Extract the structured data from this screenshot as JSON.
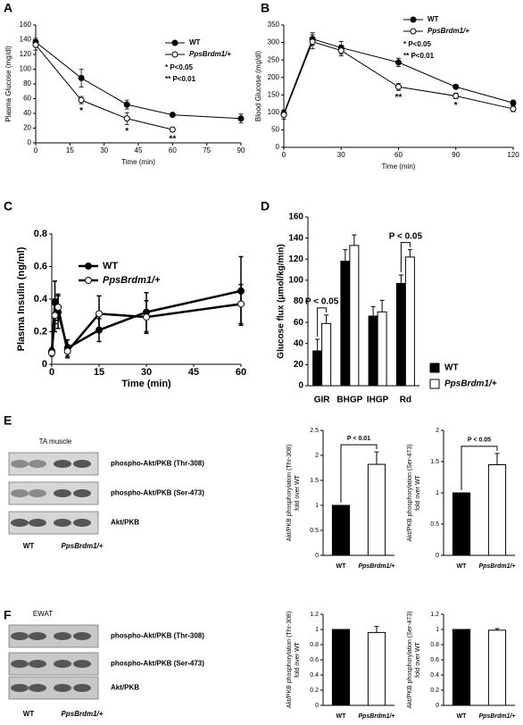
{
  "chart_data": [
    {
      "type": "line",
      "panel": "A",
      "ylabel": [
        "Plasma Glucose (mg/dl)"
      ],
      "xlabel": "Time (min)",
      "xlim": [
        0,
        90
      ],
      "xticks": [
        0,
        15,
        30,
        45,
        60,
        75,
        90
      ],
      "ylim": [
        0,
        160
      ],
      "yticks": [
        0,
        20,
        40,
        60,
        80,
        100,
        120,
        140,
        160
      ],
      "series": [
        {
          "name": "WT",
          "color": "#000000",
          "fill": "#000000",
          "x": [
            0,
            20,
            40,
            60,
            90
          ],
          "values": [
            137,
            88,
            52,
            38,
            33
          ],
          "errors": [
            5,
            12,
            6,
            2,
            6
          ]
        },
        {
          "name": "PpsBrdm1/+",
          "color": "#000000",
          "fill": "#ffffff",
          "x": [
            0,
            20,
            40,
            60
          ],
          "values": [
            133,
            58,
            33,
            18
          ],
          "errors": [
            7,
            5,
            8,
            3
          ]
        }
      ],
      "notes": [
        "* P<0.05",
        "** P<0.01"
      ],
      "annotations": [
        {
          "text": "*",
          "x": 20
        },
        {
          "text": "*",
          "x": 40
        },
        {
          "text": "**",
          "x": 60
        }
      ],
      "legend": "upper right"
    },
    {
      "type": "line",
      "panel": "B",
      "ylabel": [
        "Blood Glucose (mg/dl)"
      ],
      "xlabel": "Time (min)",
      "xlim": [
        0,
        120
      ],
      "xticks": [
        0,
        30,
        60,
        90,
        120
      ],
      "ylim": [
        0,
        350
      ],
      "yticks": [
        0,
        50,
        100,
        150,
        200,
        250,
        300,
        350
      ],
      "series": [
        {
          "name": "WT",
          "color": "#000000",
          "fill": "#000000",
          "x": [
            0,
            15,
            30,
            60,
            90,
            120
          ],
          "values": [
            97,
            310,
            285,
            243,
            173,
            127
          ],
          "errors": [
            10,
            18,
            18,
            12,
            6,
            8
          ]
        },
        {
          "name": "PpsBrdm1/+",
          "color": "#000000",
          "fill": "#ffffff",
          "x": [
            0,
            15,
            30,
            60,
            90,
            120
          ],
          "values": [
            93,
            302,
            277,
            173,
            147,
            110
          ],
          "errors": [
            12,
            20,
            15,
            10,
            8,
            8
          ]
        }
      ],
      "notes": [
        "* P<0.05",
        "** P<0.01"
      ],
      "annotations": [
        {
          "text": "**",
          "x": 60
        },
        {
          "text": "*",
          "x": 90
        }
      ],
      "legend": "upper right"
    },
    {
      "type": "line",
      "panel": "C",
      "ylabel": [
        "Plasma Insulin (ng/ml)"
      ],
      "xlabel": "Time (min)",
      "xlim": [
        0,
        60
      ],
      "xticks": [
        0,
        15,
        30,
        45,
        60
      ],
      "ylim": [
        0,
        0.8
      ],
      "yticks": [
        0,
        0.2,
        0.4,
        0.6,
        0.8
      ],
      "series": [
        {
          "name": "WT",
          "color": "#000000",
          "fill": "#000000",
          "x": [
            0,
            1,
            2,
            5,
            15,
            30,
            60
          ],
          "values": [
            0.08,
            0.38,
            0.32,
            0.1,
            0.21,
            0.32,
            0.45
          ],
          "errors": [
            0.02,
            0.13,
            0.1,
            0.05,
            0.07,
            0.12,
            0.21
          ]
        },
        {
          "name": "PpsBrdm1/+",
          "color": "#000000",
          "fill": "#ffffff",
          "x": [
            0,
            1,
            2,
            5,
            15,
            30,
            60
          ],
          "values": [
            0.07,
            0.3,
            0.35,
            0.08,
            0.31,
            0.29,
            0.37
          ],
          "errors": [
            0.02,
            0.1,
            0.08,
            0.04,
            0.11,
            0.1,
            0.12
          ]
        }
      ],
      "legend": "upper left"
    },
    {
      "type": "bar",
      "panel": "D",
      "ylabel": [
        "Glucose flux (μmol/kg/min)"
      ],
      "categories": [
        "GIR",
        "BHGP",
        "IHGP",
        "Rd"
      ],
      "ylim": [
        0,
        160
      ],
      "yticks": [
        0,
        20,
        40,
        60,
        80,
        100,
        120,
        140,
        160
      ],
      "series": [
        {
          "name": "WT",
          "color": "#000000",
          "values": [
            33,
            118,
            66,
            97
          ],
          "errors": [
            11,
            11,
            9,
            8
          ]
        },
        {
          "name": "PpsBrdm1/+",
          "color": "#ffffff",
          "values": [
            59,
            133,
            70,
            122
          ],
          "errors": [
            8,
            10,
            11,
            7
          ]
        }
      ],
      "annotations": [
        {
          "text": "P < 0.05",
          "category": 0
        },
        {
          "text": "P < 0.05",
          "category": 3
        }
      ],
      "legend": "lower right"
    },
    {
      "type": "bar",
      "ylabel": [
        "Akt/PKB phosphorylation (Thr-308)",
        "fold over WT"
      ],
      "categories": [
        "WT",
        "PpsBrdm1/+"
      ],
      "values": [
        1,
        1.82
      ],
      "errors": [
        0,
        0.25
      ],
      "colors": [
        "#000000",
        "#ffffff"
      ],
      "ylim": [
        0,
        2.5
      ],
      "yticks": [
        0,
        0.5,
        1,
        1.5,
        2,
        2.5
      ],
      "annotations": [
        {
          "text": "P < 0.01"
        }
      ]
    },
    {
      "type": "bar",
      "ylabel": [
        "Akt/PKB phosphorylation (Ser-473)",
        "fold over WT"
      ],
      "categories": [
        "WT",
        "PpsBrdm1/+"
      ],
      "values": [
        1,
        1.45
      ],
      "errors": [
        0,
        0.18
      ],
      "colors": [
        "#000000",
        "#ffffff"
      ],
      "ylim": [
        0,
        2
      ],
      "yticks": [
        0,
        0.5,
        1,
        1.5,
        2
      ],
      "annotations": [
        {
          "text": "P < 0.05"
        }
      ]
    },
    {
      "type": "bar",
      "ylabel": [
        "Akt/PKB phosphorylation (Thr-308)",
        "fold over WT"
      ],
      "categories": [
        "WT",
        "PpsBrdm1/+"
      ],
      "values": [
        1,
        0.96
      ],
      "errors": [
        0,
        0.08
      ],
      "colors": [
        "#000000",
        "#ffffff"
      ],
      "ylim": [
        0,
        1.2
      ],
      "yticks": [
        0,
        0.2,
        0.4,
        0.6,
        0.8,
        1,
        1.2
      ]
    },
    {
      "type": "bar",
      "ylabel": [
        "Akt/PKB phosphorylation (Ser-473)",
        "fold over WT"
      ],
      "categories": [
        "WT",
        "PpsBrdm1/+"
      ],
      "values": [
        1,
        0.99
      ],
      "errors": [
        0,
        0.02
      ],
      "colors": [
        "#000000",
        "#ffffff"
      ],
      "ylim": [
        0,
        1.2
      ],
      "yticks": [
        0,
        0.2,
        0.4,
        0.6,
        0.8,
        1,
        1.2
      ]
    }
  ],
  "blots": [
    {
      "panel": "E",
      "tissue": "TA muscle",
      "rows": [
        "phospho-Akt/PKB (Thr-308)",
        "phospho-Akt/PKB (Ser-473)",
        "Akt/PKB"
      ],
      "lanes": [
        "WT",
        "PpsBrdm1/+"
      ]
    },
    {
      "panel": "F",
      "tissue": "EWAT",
      "rows": [
        "phospho-Akt/PKB (Thr-308)",
        "phospho-Akt/PKB (Ser-473)",
        "Akt/PKB"
      ],
      "lanes": [
        "WT",
        "PpsBrdm1/+"
      ]
    }
  ]
}
